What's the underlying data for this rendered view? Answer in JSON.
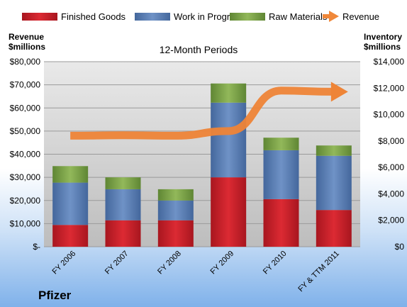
{
  "chart_data": {
    "type": "bar",
    "title": "12-Month Periods",
    "company": "Pfizer",
    "categories": [
      "FY 2006",
      "FY 2007",
      "FY 2008",
      "FY 2009",
      "FY 2010",
      "FY & TTM 2011"
    ],
    "left_axis": {
      "label_line1": "Revenue",
      "label_line2": "$millions",
      "ylim": [
        0,
        80000
      ],
      "ticks": [
        {
          "v": 0,
          "label": "$-"
        },
        {
          "v": 10000,
          "label": "$10,000"
        },
        {
          "v": 20000,
          "label": "$20,000"
        },
        {
          "v": 30000,
          "label": "$30,000"
        },
        {
          "v": 40000,
          "label": "$40,000"
        },
        {
          "v": 50000,
          "label": "$50,000"
        },
        {
          "v": 60000,
          "label": "$60,000"
        },
        {
          "v": 70000,
          "label": "$70,000"
        },
        {
          "v": 80000,
          "label": "$80,000"
        }
      ]
    },
    "right_axis": {
      "label_line1": "Inventory",
      "label_line2": "$millions",
      "ylim": [
        0,
        14000
      ],
      "ticks": [
        {
          "v": 0,
          "label": "$0"
        },
        {
          "v": 2000,
          "label": "$2,000"
        },
        {
          "v": 4000,
          "label": "$4,000"
        },
        {
          "v": 6000,
          "label": "$6,000"
        },
        {
          "v": 8000,
          "label": "$8,000"
        },
        {
          "v": 10000,
          "label": "$10,000"
        },
        {
          "v": 12000,
          "label": "$12,000"
        },
        {
          "v": 14000,
          "label": "$14,000"
        }
      ]
    },
    "series": [
      {
        "name": "Finished Goods",
        "axis": "right",
        "color": "#c0202a",
        "values": [
          1650,
          2000,
          2000,
          5250,
          3600,
          2780
        ]
      },
      {
        "name": "Work in Progress",
        "axis": "right",
        "color": "#5b7fb5",
        "values": [
          3200,
          2350,
          1500,
          5650,
          3700,
          4100
        ]
      },
      {
        "name": "Raw Materials",
        "axis": "right",
        "color": "#7ea54a",
        "values": [
          1250,
          900,
          850,
          1450,
          950,
          780
        ]
      },
      {
        "name": "Revenue",
        "axis": "left",
        "color": "#f0883a",
        "type": "line",
        "values": [
          48000,
          48200,
          48000,
          50000,
          67500,
          67000
        ]
      }
    ],
    "grid": true,
    "legend": "top"
  }
}
